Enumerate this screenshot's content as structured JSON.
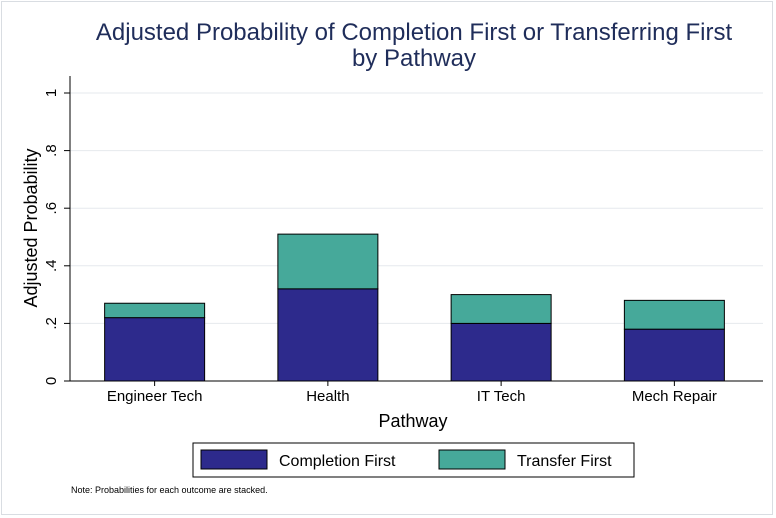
{
  "chart_data": {
    "type": "bar",
    "stacked": true,
    "title": "Adjusted Probability of Completion First or Transferring First",
    "subtitle": "by Pathway",
    "xlabel": "Pathway",
    "ylabel": "Adjusted Probability",
    "categories": [
      "Engineer Tech",
      "Health",
      "IT Tech",
      "Mech Repair"
    ],
    "series": [
      {
        "name": "Completion First",
        "values": [
          0.22,
          0.32,
          0.2,
          0.18
        ],
        "color": "#2d2a8c"
      },
      {
        "name": "Transfer First",
        "values": [
          0.05,
          0.19,
          0.1,
          0.1
        ],
        "color": "#46a99a"
      }
    ],
    "ylim": [
      0,
      1
    ],
    "yticks": [
      {
        "value": 0,
        "label": "0"
      },
      {
        "value": 0.2,
        "label": ".2"
      },
      {
        "value": 0.4,
        "label": ".4"
      },
      {
        "value": 0.6,
        "label": ".6"
      },
      {
        "value": 0.8,
        "label": ".8"
      },
      {
        "value": 1,
        "label": "1"
      }
    ],
    "grid": true,
    "legend_position": "bottom",
    "note": "Note: Probabilities for each outcome are stacked."
  }
}
